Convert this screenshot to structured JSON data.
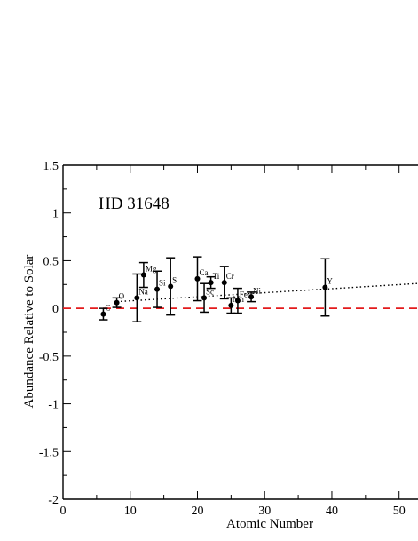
{
  "chart_data": {
    "type": "scatter",
    "title": "",
    "annotation": "HD 31648",
    "xlabel": "Atomic Number",
    "ylabel": "Abundance Relative to Solar",
    "xlim": [
      0,
      54
    ],
    "ylim": [
      -2,
      1.5
    ],
    "x_ticks": [
      "0",
      "10",
      "20",
      "30",
      "40",
      "50"
    ],
    "y_ticks": [
      "-2",
      "-1.5",
      "-1",
      "-0.5",
      "0",
      "0.5",
      "1",
      "1.5"
    ],
    "grid": false,
    "colors": {
      "points": "#000000",
      "reference_line": "#e31a1c",
      "trend_line": "#000000"
    },
    "reference_line": {
      "y": 0,
      "style": "dashed"
    },
    "trend_line": {
      "style": "dotted",
      "x": [
        8,
        55
      ],
      "y": [
        0.07,
        0.27
      ]
    },
    "points": [
      {
        "element": "C",
        "x": 6,
        "y": -0.06,
        "err": 0.06
      },
      {
        "element": "O",
        "x": 8,
        "y": 0.06,
        "err": 0.05
      },
      {
        "element": "Na",
        "x": 11,
        "y": 0.11,
        "err": 0.25
      },
      {
        "element": "Mg",
        "x": 12,
        "y": 0.35,
        "err": 0.13
      },
      {
        "element": "Si",
        "x": 14,
        "y": 0.2,
        "err": 0.19
      },
      {
        "element": "S",
        "x": 16,
        "y": 0.23,
        "err": 0.3
      },
      {
        "element": "Ca",
        "x": 20,
        "y": 0.31,
        "err": 0.23
      },
      {
        "element": "Sc",
        "x": 21,
        "y": 0.11,
        "err": 0.15
      },
      {
        "element": "Ti",
        "x": 22,
        "y": 0.27,
        "err": 0.06
      },
      {
        "element": "Cr",
        "x": 24,
        "y": 0.27,
        "err": 0.17
      },
      {
        "element": "Mn",
        "x": 25,
        "y": 0.03,
        "err": 0.08
      },
      {
        "element": "Fe",
        "x": 26,
        "y": 0.08,
        "err": 0.13
      },
      {
        "element": "Ni",
        "x": 28,
        "y": 0.12,
        "err": 0.05
      },
      {
        "element": "Y",
        "x": 39,
        "y": 0.22,
        "err": 0.3
      }
    ]
  }
}
